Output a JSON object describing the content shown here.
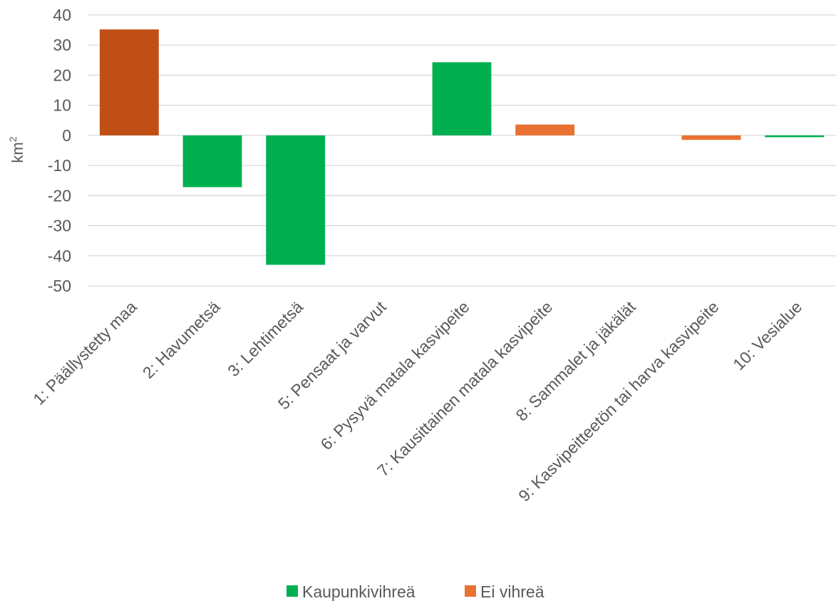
{
  "chart_data": {
    "type": "bar",
    "categories": [
      "1: Päällystetty maa",
      "2: Havumetsä",
      "3: Lehtimetsä",
      "5: Pensaat ja varvut",
      "6: Pysyvä matala kasvipeite",
      "7: Kausittainen matala kasvipeite",
      "8: Sammalet ja jäkälät",
      "9: Kasvipeitteetön tai harva kasvipeite",
      "10: Vesialue"
    ],
    "values": [
      35.2,
      -17.2,
      -43.0,
      0,
      24.3,
      3.6,
      0,
      -1.5,
      -0.6
    ],
    "groups": [
      "Ei vihreä",
      "Kaupunkivihreä",
      "Kaupunkivihreä",
      "Kaupunkivihreä",
      "Kaupunkivihreä",
      "Ei vihreä",
      "Kaupunkivihreä",
      "Ei vihreä",
      "Kaupunkivihreä"
    ],
    "bar_colors": [
      "#c04f15",
      "#00b050",
      "#00b050",
      "#00b050",
      "#00b050",
      "#e97132",
      "#00b050",
      "#e97132",
      "#00b050"
    ],
    "title": "",
    "xlabel": "",
    "ylabel": "km",
    "ylabel_superscript": "2",
    "ylim": [
      -50,
      40
    ],
    "yticks": [
      40,
      30,
      20,
      10,
      0,
      -10,
      -20,
      -30,
      -40,
      -50
    ],
    "grid": true,
    "legend": {
      "placement": "bottom",
      "items": [
        {
          "label": "Kaupunkivihreä",
          "color": "#00b050"
        },
        {
          "label": "Ei vihreä",
          "color": "#e97132"
        }
      ]
    }
  }
}
